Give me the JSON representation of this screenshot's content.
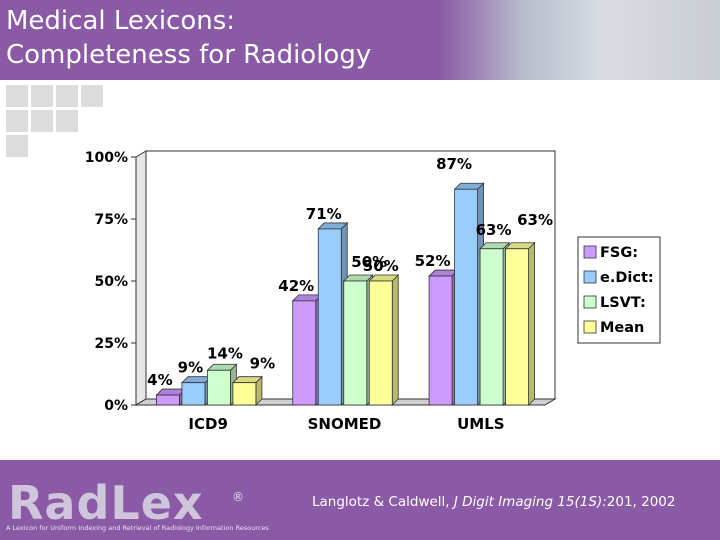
{
  "title": {
    "line1": "Medical Lexicons:",
    "line2": "Completeness for Radiology"
  },
  "chart_data": {
    "type": "bar",
    "categories": [
      "ICD9",
      "SNOMED",
      "UMLS"
    ],
    "series": [
      {
        "name": "FSG:",
        "values": [
          4,
          42,
          52
        ],
        "color": "#cc99ff",
        "labels": [
          "4%",
          "42%",
          "52%"
        ]
      },
      {
        "name": "e.Dict:",
        "values": [
          9,
          71,
          87
        ],
        "color": "#99ccff",
        "labels": [
          "9%",
          "71%",
          "87%"
        ]
      },
      {
        "name": "LSVT:",
        "values": [
          14,
          50,
          63
        ],
        "color": "#ccffcc",
        "labels": [
          "14%",
          "50%",
          "63%"
        ]
      },
      {
        "name": "Mean",
        "values": [
          9,
          50,
          63
        ],
        "color": "#ffff99",
        "labels": [
          "9%",
          "50%",
          "63%"
        ]
      }
    ],
    "yticks": [
      "0%",
      "25%",
      "50%",
      "75%",
      "100%"
    ],
    "ylim": [
      0,
      100
    ],
    "grid": false,
    "legend": "right"
  },
  "footer": {
    "logo": "RadLex",
    "logo_mark": "®",
    "tagline": "A Lexicon for Uniform Indexing and Retrieval of Radiology Information Resources",
    "citation_authors": "Langlotz & Caldwell, ",
    "citation_journal": "J Digit Imaging 15(1S):",
    "citation_rest": "201, 2002"
  },
  "colors": {
    "header": "#8a5aa6",
    "footer": "#8a5aa6"
  }
}
